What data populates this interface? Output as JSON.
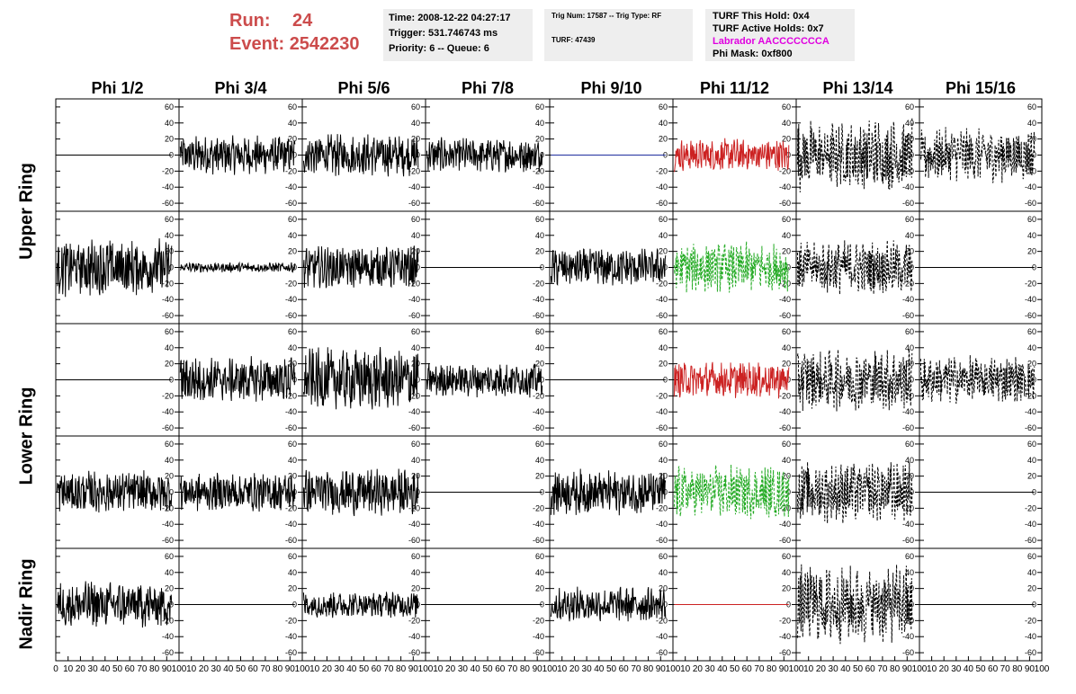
{
  "header": {
    "run_label": "Run:",
    "run_value": "24",
    "event_label": "Event:",
    "event_value": "2542230",
    "time": "Time: 2008-12-22 04:27:17",
    "trigger": "Trigger: 531.746743 ms",
    "priority": "Priority: 6 -- Queue: 6",
    "trig_num": "Trig Num: 17587 -- Trig Type: RF",
    "turf": "TURF: 47439",
    "turf_this_hold": "TURF This Hold: 0x4",
    "turf_active_holds": "TURF Active Holds: 0x7",
    "labrador": "Labrador AACCCCCCCA",
    "phi_mask": "Phi Mask: 0xf800"
  },
  "colors": {
    "header_red": "#cc4c4c",
    "box_gray": "#eeeeee",
    "magenta": "#e000e0",
    "trace_black": "#000000",
    "trace_red": "#cc2222",
    "trace_green": "#22aa22",
    "trace_blue": "#1f2f9f"
  },
  "chart_data": {
    "type": "line",
    "columns": [
      "Phi 1/2",
      "Phi 3/4",
      "Phi 5/6",
      "Phi 7/8",
      "Phi 9/10",
      "Phi 11/12",
      "Phi 13/14",
      "Phi 15/16"
    ],
    "ring_labels": [
      "Upper Ring",
      "Lower Ring",
      "Nadir Ring"
    ],
    "rows": 5,
    "xlim": [
      0,
      100
    ],
    "ylim": [
      -70,
      70
    ],
    "x_ticks_first": [
      "0",
      "10",
      "20",
      "30",
      "40",
      "50",
      "60",
      "70",
      "80",
      "90",
      "100"
    ],
    "x_ticks_other": [
      "10",
      "20",
      "30",
      "40",
      "50",
      "60",
      "70",
      "80",
      "90",
      "100"
    ],
    "y_ticks": [
      "60",
      "40",
      "20",
      "0",
      "-20",
      "-40",
      "-60"
    ],
    "y_tick_values": [
      60,
      40,
      20,
      0,
      -20,
      -40,
      -60
    ],
    "y_axis_side": "right",
    "traces": [
      [
        {
          "style": "flat",
          "color": "black",
          "amp": 0
        },
        {
          "style": "solid",
          "color": "black",
          "amp": 20
        },
        {
          "style": "solid",
          "color": "black",
          "amp": 22
        },
        {
          "style": "solid",
          "color": "black",
          "amp": 18
        },
        {
          "style": "flat",
          "color": "blue",
          "amp": 0
        },
        {
          "style": "solid",
          "color": "red",
          "amp": 17
        },
        {
          "style": "dashed",
          "color": "black",
          "amp": 38
        },
        {
          "style": "dashed",
          "color": "black",
          "amp": 28
        }
      ],
      [
        {
          "style": "solid",
          "color": "black",
          "amp": 30
        },
        {
          "style": "solid",
          "color": "black",
          "amp": 5
        },
        {
          "style": "solid",
          "color": "black",
          "amp": 22
        },
        {
          "style": "flat",
          "color": "black",
          "amp": 0
        },
        {
          "style": "solid",
          "color": "black",
          "amp": 20
        },
        {
          "style": "dashed",
          "color": "green",
          "amp": 26
        },
        {
          "style": "dashed",
          "color": "black",
          "amp": 28
        },
        {
          "style": "flat",
          "color": "black",
          "amp": 0
        }
      ],
      [
        {
          "style": "flat",
          "color": "black",
          "amp": 0
        },
        {
          "style": "solid",
          "color": "black",
          "amp": 24
        },
        {
          "style": "solid",
          "color": "black",
          "amp": 33
        },
        {
          "style": "solid",
          "color": "black",
          "amp": 18
        },
        {
          "style": "flat",
          "color": "black",
          "amp": 0
        },
        {
          "style": "solid",
          "color": "red",
          "amp": 19
        },
        {
          "style": "dashed",
          "color": "black",
          "amp": 32
        },
        {
          "style": "dashed",
          "color": "black",
          "amp": 25
        }
      ],
      [
        {
          "style": "solid",
          "color": "black",
          "amp": 22
        },
        {
          "style": "solid",
          "color": "black",
          "amp": 20
        },
        {
          "style": "solid",
          "color": "black",
          "amp": 24
        },
        {
          "style": "flat",
          "color": "black",
          "amp": 0
        },
        {
          "style": "solid",
          "color": "black",
          "amp": 24
        },
        {
          "style": "dashed",
          "color": "green",
          "amp": 28
        },
        {
          "style": "dashed",
          "color": "black",
          "amp": 32
        },
        {
          "style": "flat",
          "color": "black",
          "amp": 0
        }
      ],
      [
        {
          "style": "solid",
          "color": "black",
          "amp": 24
        },
        {
          "style": "flat",
          "color": "black",
          "amp": 0
        },
        {
          "style": "solid",
          "color": "black",
          "amp": 14
        },
        {
          "style": "flat",
          "color": "black",
          "amp": 0
        },
        {
          "style": "solid",
          "color": "black",
          "amp": 18
        },
        {
          "style": "flat",
          "color": "red",
          "amp": 0
        },
        {
          "style": "dashed",
          "color": "black",
          "amp": 42
        },
        {
          "style": "flat",
          "color": "black",
          "amp": 0
        }
      ]
    ]
  }
}
